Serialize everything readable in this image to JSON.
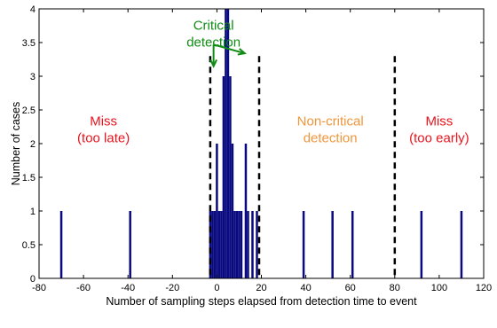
{
  "chart_data": {
    "type": "bar",
    "title": "",
    "xlabel": "Number of sampling steps elapsed from detection time to event",
    "ylabel": "Number of cases",
    "xlim": [
      -80,
      120
    ],
    "ylim": [
      0,
      4
    ],
    "x_ticks": [
      -80,
      -60,
      -40,
      -20,
      0,
      20,
      40,
      60,
      80,
      100,
      120
    ],
    "y_ticks": [
      0,
      0.5,
      1,
      1.5,
      2,
      2.5,
      3,
      3.5,
      4
    ],
    "grid": false,
    "bar_color": "#0a0a80",
    "bar_width": 1,
    "bars": [
      {
        "x": -70,
        "y": 1
      },
      {
        "x": -39,
        "y": 1
      },
      {
        "x": -3,
        "y": 1
      },
      {
        "x": -2,
        "y": 1
      },
      {
        "x": -1,
        "y": 1
      },
      {
        "x": 0,
        "y": 2
      },
      {
        "x": 1,
        "y": 1
      },
      {
        "x": 2,
        "y": 1
      },
      {
        "x": 3,
        "y": 3
      },
      {
        "x": 4,
        "y": 4
      },
      {
        "x": 5,
        "y": 4
      },
      {
        "x": 6,
        "y": 3
      },
      {
        "x": 7,
        "y": 2
      },
      {
        "x": 8,
        "y": 1
      },
      {
        "x": 9,
        "y": 1
      },
      {
        "x": 10,
        "y": 1
      },
      {
        "x": 11,
        "y": 1
      },
      {
        "x": 13,
        "y": 2
      },
      {
        "x": 14,
        "y": 1
      },
      {
        "x": 16,
        "y": 1
      },
      {
        "x": 18,
        "y": 1
      },
      {
        "x": 39,
        "y": 1
      },
      {
        "x": 52,
        "y": 1
      },
      {
        "x": 61,
        "y": 1
      },
      {
        "x": 92,
        "y": 1
      },
      {
        "x": 110,
        "y": 1
      }
    ],
    "threshold_lines": [
      {
        "x": -3,
        "y_top": 3.3
      },
      {
        "x": 19,
        "y_top": 3.3
      },
      {
        "x": 80,
        "y_top": 3.3
      }
    ],
    "annotations": [
      {
        "lines": [
          "Miss",
          "(too late)"
        ],
        "x": -51,
        "y": 2.27,
        "color": "#e8141e"
      },
      {
        "lines": [
          "Non-critical",
          "detection"
        ],
        "x": 51,
        "y": 2.27,
        "color": "#f0963c"
      },
      {
        "lines": [
          "Miss",
          "(too early)"
        ],
        "x": 100,
        "y": 2.27,
        "color": "#e8141e"
      },
      {
        "lines": [
          "Critical",
          "detection"
        ],
        "x": -1.5,
        "y": 3.69,
        "color": "#108c14"
      }
    ],
    "arrows": {
      "color": "#108c14",
      "origin": {
        "x": -1.5,
        "y": 3.47
      },
      "targets": [
        {
          "x": -1.5,
          "y": 3.15
        },
        {
          "x": 12.5,
          "y": 3.34
        }
      ]
    }
  }
}
